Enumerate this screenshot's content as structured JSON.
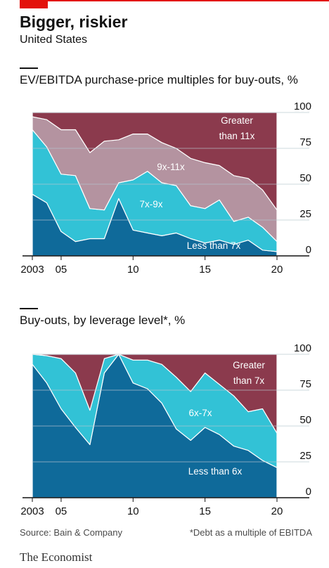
{
  "header": {
    "title": "Bigger, riskier",
    "subtitle": "United States"
  },
  "chart_data": [
    {
      "type": "area",
      "stacked": true,
      "title": "EV/EBITDA purchase-price multiples for buy-outs, %",
      "ylim": [
        0,
        100
      ],
      "yticks": [
        "0",
        "25",
        "50",
        "75",
        "100"
      ],
      "xticks": [
        "2003",
        "05",
        "10",
        "15",
        "20"
      ],
      "grid": true,
      "x": [
        2003,
        2004,
        2005,
        2006,
        2007,
        2008,
        2009,
        2010,
        2011,
        2012,
        2013,
        2014,
        2015,
        2016,
        2017,
        2018,
        2019,
        2020
      ],
      "series": [
        {
          "name": "Less than 7x",
          "color": "#0f6a9a",
          "values": [
            43,
            37,
            17,
            10,
            12,
            12,
            40,
            18,
            16,
            14,
            16,
            12,
            9,
            11,
            8,
            11,
            4,
            3
          ]
        },
        {
          "name": "7x-9x",
          "color": "#32c2d6",
          "values": [
            45,
            39,
            40,
            46,
            21,
            20,
            11,
            35,
            43,
            37,
            33,
            23,
            24,
            28,
            16,
            16,
            16,
            7
          ]
        },
        {
          "name": "9x-11x",
          "color": "#b493a0",
          "values": [
            9,
            19,
            31,
            32,
            39,
            48,
            30,
            32,
            26,
            28,
            26,
            33,
            32,
            24,
            32,
            27,
            26,
            22
          ]
        },
        {
          "name": "Greater than 11x",
          "color": "#8b3a4d",
          "values": [
            3,
            5,
            12,
            12,
            28,
            20,
            19,
            15,
            15,
            21,
            25,
            32,
            35,
            37,
            44,
            46,
            54,
            68
          ]
        }
      ]
    },
    {
      "type": "area",
      "stacked": true,
      "title": "Buy-outs, by leverage level*, %",
      "ylim": [
        0,
        100
      ],
      "yticks": [
        "0",
        "25",
        "50",
        "75",
        "100"
      ],
      "xticks": [
        "2003",
        "05",
        "10",
        "15",
        "20"
      ],
      "grid": true,
      "x": [
        2003,
        2004,
        2005,
        2006,
        2007,
        2008,
        2009,
        2010,
        2011,
        2012,
        2013,
        2014,
        2015,
        2016,
        2017,
        2018,
        2019,
        2020
      ],
      "series": [
        {
          "name": "Less than 6x",
          "color": "#0f6a9a",
          "values": [
            93,
            80,
            62,
            49,
            37,
            87,
            100,
            80,
            76,
            66,
            48,
            40,
            49,
            44,
            36,
            33,
            26,
            21
          ]
        },
        {
          "name": "6x-7x",
          "color": "#32c2d6",
          "values": [
            7,
            19,
            35,
            38,
            24,
            10,
            0,
            16,
            20,
            27,
            36,
            34,
            38,
            35,
            35,
            27,
            36,
            24
          ]
        },
        {
          "name": "Greater than 7x",
          "color": "#8b3a4d",
          "values": [
            0,
            1,
            3,
            13,
            39,
            3,
            0,
            4,
            4,
            7,
            16,
            26,
            13,
            21,
            29,
            40,
            38,
            55
          ]
        }
      ]
    }
  ],
  "labels": {
    "chart1": [
      "Greater",
      "than 11x",
      "9x-11x",
      "7x-9x",
      "Less than 7x"
    ],
    "chart2": [
      "Greater",
      "than 7x",
      "6x-7x",
      "Less than 6x"
    ]
  },
  "footer": {
    "source": "Source: Bain & Company",
    "note": "*Debt as a multiple of EBITDA",
    "brand": "The Economist"
  }
}
